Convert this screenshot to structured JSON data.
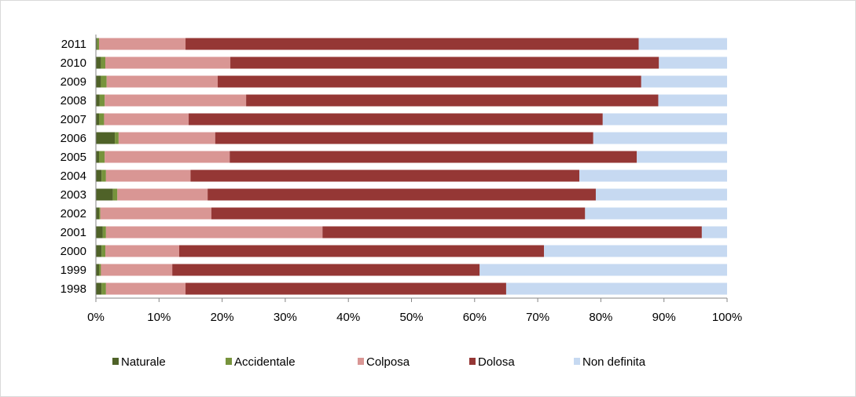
{
  "chart_data": {
    "type": "bar",
    "orientation": "horizontal",
    "stacked": "percent",
    "categories": [
      "2011",
      "2010",
      "2009",
      "2008",
      "2007",
      "2006",
      "2005",
      "2004",
      "2003",
      "2002",
      "2001",
      "2000",
      "1999",
      "1998"
    ],
    "series": [
      {
        "name": "Naturale",
        "color": "#4f6228",
        "values": [
          0.2,
          0.8,
          0.8,
          0.6,
          0.5,
          3.0,
          0.5,
          0.9,
          2.7,
          0.5,
          1.1,
          0.9,
          0.5,
          0.9
        ]
      },
      {
        "name": "Accidentale",
        "color": "#77933c",
        "values": [
          0.3,
          0.7,
          0.9,
          0.8,
          0.8,
          0.6,
          0.9,
          0.7,
          0.7,
          0.2,
          0.5,
          0.6,
          0.3,
          0.7
        ]
      },
      {
        "name": "Colposa",
        "color": "#d99694",
        "values": [
          13.7,
          19.8,
          17.6,
          22.4,
          13.4,
          15.3,
          19.8,
          13.4,
          14.3,
          17.6,
          34.3,
          11.7,
          11.3,
          12.6
        ]
      },
      {
        "name": "Dolosa",
        "color": "#953735",
        "values": [
          71.8,
          67.9,
          67.1,
          65.3,
          65.6,
          59.9,
          64.5,
          61.6,
          61.5,
          59.2,
          60.1,
          57.8,
          48.7,
          50.8
        ]
      },
      {
        "name": "Non definita",
        "color": "#c6d9f1",
        "values": [
          14.0,
          10.8,
          13.6,
          10.9,
          19.7,
          21.2,
          14.3,
          23.4,
          20.8,
          22.5,
          4.0,
          29.0,
          39.2,
          35.0
        ]
      }
    ],
    "xlim": [
      0,
      100
    ],
    "x_ticks": [
      "0%",
      "10%",
      "20%",
      "30%",
      "40%",
      "50%",
      "60%",
      "70%",
      "80%",
      "90%",
      "100%"
    ],
    "legend_position": "bottom",
    "grid": false
  }
}
